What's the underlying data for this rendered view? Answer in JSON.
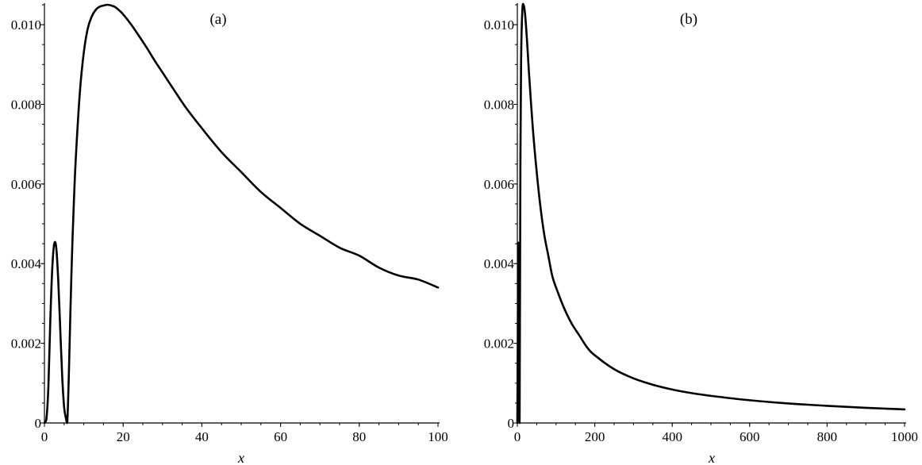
{
  "chart_data": [
    {
      "type": "line",
      "title": "(a)",
      "xlabel": "x",
      "ylabel": "",
      "xlim": [
        0,
        100
      ],
      "ylim": [
        0,
        0.0105
      ],
      "xticks": [
        "0",
        "20",
        "40",
        "60",
        "80",
        "100"
      ],
      "yticks": [
        "0",
        "0.002",
        "0.004",
        "0.006",
        "0.008",
        "0.010"
      ],
      "grid": false,
      "series": [
        {
          "x": [
            0,
            0.5,
            1,
            1.5,
            2,
            2.5,
            3,
            3.5,
            4,
            4.5,
            5,
            5.5,
            5.8,
            6.2,
            6.6,
            7,
            7.5,
            8,
            9,
            10,
            11,
            12,
            13,
            14,
            15,
            16,
            17,
            18,
            19,
            20,
            22,
            24,
            26,
            28,
            30,
            33,
            36,
            40,
            45,
            50,
            55,
            60,
            65,
            70,
            75,
            80,
            85,
            90,
            95,
            100
          ],
          "y": [
            0,
            0.0001,
            0.0009,
            0.0026,
            0.0039,
            0.0045,
            0.0044,
            0.0036,
            0.0024,
            0.0012,
            0.0004,
            0.0001,
            0,
            0.0012,
            0.0028,
            0.0042,
            0.0056,
            0.0067,
            0.0083,
            0.0093,
            0.0099,
            0.0102,
            0.01037,
            0.01045,
            0.01048,
            0.0105,
            0.01048,
            0.01044,
            0.01036,
            0.01026,
            0.01001,
            0.00972,
            0.00942,
            0.0091,
            0.0088,
            0.00835,
            0.00791,
            0.0074,
            0.0068,
            0.0063,
            0.0058,
            0.0054,
            0.005,
            0.0047,
            0.0044,
            0.0042,
            0.0039,
            0.0037,
            0.0036,
            0.0034
          ]
        }
      ]
    },
    {
      "type": "line",
      "title": "(b)",
      "xlabel": "x",
      "ylabel": "",
      "xlim": [
        0,
        1000
      ],
      "ylim": [
        0,
        0.0105
      ],
      "xticks": [
        "0",
        "200",
        "400",
        "600",
        "800",
        "1000"
      ],
      "yticks": [
        "0",
        "0.002",
        "0.004",
        "0.006",
        "0.008",
        "0.010"
      ],
      "grid": false,
      "series": [
        {
          "x": [
            0,
            1.5,
            3,
            4.5,
            5.8,
            8,
            10,
            13,
            16,
            20,
            25,
            30,
            40,
            50,
            60,
            70,
            80,
            90,
            100,
            120,
            140,
            160,
            180,
            200,
            250,
            300,
            350,
            400,
            450,
            500,
            600,
            700,
            800,
            900,
            1000
          ],
          "y": [
            0,
            0.0026,
            0.0045,
            0.0012,
            0,
            0.0067,
            0.0093,
            0.01037,
            0.0105,
            0.01026,
            0.0096,
            0.0088,
            0.0074,
            0.0063,
            0.0054,
            0.0047,
            0.0042,
            0.0037,
            0.0034,
            0.0029,
            0.0025,
            0.0022,
            0.0019,
            0.0017,
            0.00135,
            0.00112,
            0.00096,
            0.00084,
            0.00075,
            0.00068,
            0.00057,
            0.00049,
            0.00043,
            0.00038,
            0.00034
          ]
        }
      ]
    }
  ]
}
